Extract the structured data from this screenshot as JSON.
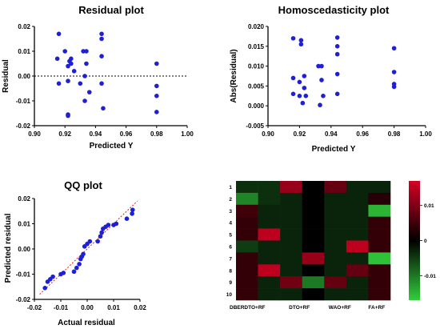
{
  "chart_data": [
    {
      "type": "scatter",
      "title": "Residual plot",
      "xlabel": "Predicted Y",
      "ylabel": "Residual",
      "xlim": [
        0.9,
        1.0
      ],
      "ylim": [
        -0.02,
        0.02
      ],
      "xticks": [
        "0.90",
        "0.92",
        "0.94",
        "0.96",
        "0.98",
        "1.00"
      ],
      "yticks": [
        "0.02",
        "0.01",
        "0.00",
        "-0.01",
        "-0.02"
      ],
      "reference_line": 0,
      "color": "#1f1fd6",
      "points": [
        {
          "x": 0.916,
          "y": 0.017
        },
        {
          "x": 0.915,
          "y": 0.007
        },
        {
          "x": 0.916,
          "y": -0.003
        },
        {
          "x": 0.92,
          "y": 0.01
        },
        {
          "x": 0.922,
          "y": 0.004
        },
        {
          "x": 0.923,
          "y": 0.006
        },
        {
          "x": 0.924,
          "y": 0.007
        },
        {
          "x": 0.924,
          "y": 0.005
        },
        {
          "x": 0.922,
          "y": -0.002
        },
        {
          "x": 0.922,
          "y": -0.0155
        },
        {
          "x": 0.922,
          "y": -0.016
        },
        {
          "x": 0.926,
          "y": 0.002
        },
        {
          "x": 0.93,
          "y": -0.003
        },
        {
          "x": 0.932,
          "y": 0.01
        },
        {
          "x": 0.934,
          "y": 0.01
        },
        {
          "x": 0.933,
          "y": 0.0
        },
        {
          "x": 0.934,
          "y": 0.005
        },
        {
          "x": 0.933,
          "y": -0.01
        },
        {
          "x": 0.936,
          "y": -0.0065
        },
        {
          "x": 0.944,
          "y": 0.017
        },
        {
          "x": 0.944,
          "y": 0.015
        },
        {
          "x": 0.944,
          "y": 0.008
        },
        {
          "x": 0.944,
          "y": -0.003
        },
        {
          "x": 0.945,
          "y": -0.013
        },
        {
          "x": 0.98,
          "y": 0.005
        },
        {
          "x": 0.98,
          "y": -0.004
        },
        {
          "x": 0.98,
          "y": -0.008
        },
        {
          "x": 0.98,
          "y": -0.0145
        }
      ]
    },
    {
      "type": "scatter",
      "title": "Homoscedasticity plot",
      "xlabel": "Predicted Y",
      "ylabel": "Abs(Residual)",
      "xlim": [
        0.9,
        1.0
      ],
      "ylim": [
        -0.005,
        0.02
      ],
      "xticks": [
        "0.90",
        "0.92",
        "0.94",
        "0.96",
        "0.98",
        "1.00"
      ],
      "yticks": [
        "0.020",
        "0.015",
        "0.010",
        "0.005",
        "0.000",
        "-0.005"
      ],
      "color": "#1f1fd6",
      "points": [
        {
          "x": 0.916,
          "y": 0.017
        },
        {
          "x": 0.916,
          "y": 0.007
        },
        {
          "x": 0.916,
          "y": 0.003
        },
        {
          "x": 0.921,
          "y": 0.0165
        },
        {
          "x": 0.921,
          "y": 0.0155
        },
        {
          "x": 0.92,
          "y": 0.006
        },
        {
          "x": 0.92,
          "y": 0.0025
        },
        {
          "x": 0.922,
          "y": 0.0007
        },
        {
          "x": 0.923,
          "y": 0.0075
        },
        {
          "x": 0.923,
          "y": 0.0045
        },
        {
          "x": 0.924,
          "y": 0.0025
        },
        {
          "x": 0.932,
          "y": 0.01
        },
        {
          "x": 0.934,
          "y": 0.01
        },
        {
          "x": 0.933,
          "y": 0.0002
        },
        {
          "x": 0.934,
          "y": 0.0065
        },
        {
          "x": 0.935,
          "y": 0.0025
        },
        {
          "x": 0.944,
          "y": 0.0172
        },
        {
          "x": 0.944,
          "y": 0.015
        },
        {
          "x": 0.944,
          "y": 0.013
        },
        {
          "x": 0.944,
          "y": 0.008
        },
        {
          "x": 0.944,
          "y": 0.003
        },
        {
          "x": 0.98,
          "y": 0.0145
        },
        {
          "x": 0.98,
          "y": 0.0085
        },
        {
          "x": 0.98,
          "y": 0.0055
        },
        {
          "x": 0.98,
          "y": 0.0048
        }
      ]
    },
    {
      "type": "scatter",
      "title": "QQ plot",
      "xlabel": "Actual residual",
      "ylabel": "Predicted residual",
      "xlim": [
        -0.02,
        0.02
      ],
      "ylim": [
        -0.02,
        0.02
      ],
      "xticks": [
        "-0.02",
        "-0.01",
        "0.00",
        "0.01",
        "0.02"
      ],
      "yticks": [
        "0.02",
        "0.01",
        "0.00",
        "-0.01",
        "-0.02"
      ],
      "reference_line": "y = x",
      "reference_color": "#e02020",
      "color": "#1f1fd6",
      "points": [
        {
          "x": -0.016,
          "y": -0.0155
        },
        {
          "x": -0.015,
          "y": -0.013
        },
        {
          "x": -0.014,
          "y": -0.012
        },
        {
          "x": -0.013,
          "y": -0.011
        },
        {
          "x": -0.01,
          "y": -0.01
        },
        {
          "x": -0.009,
          "y": -0.0095
        },
        {
          "x": -0.005,
          "y": -0.009
        },
        {
          "x": -0.004,
          "y": -0.0075
        },
        {
          "x": -0.003,
          "y": -0.006
        },
        {
          "x": -0.0025,
          "y": -0.004
        },
        {
          "x": -0.002,
          "y": -0.003
        },
        {
          "x": -0.0015,
          "y": -0.002
        },
        {
          "x": -0.001,
          "y": 0.001
        },
        {
          "x": 0.0,
          "y": 0.002
        },
        {
          "x": 0.001,
          "y": 0.003
        },
        {
          "x": 0.004,
          "y": 0.003
        },
        {
          "x": 0.005,
          "y": 0.005
        },
        {
          "x": 0.0055,
          "y": 0.0065
        },
        {
          "x": 0.006,
          "y": 0.008
        },
        {
          "x": 0.007,
          "y": 0.0088
        },
        {
          "x": 0.008,
          "y": 0.0095
        },
        {
          "x": 0.01,
          "y": 0.0095
        },
        {
          "x": 0.011,
          "y": 0.01
        },
        {
          "x": 0.015,
          "y": 0.012
        },
        {
          "x": 0.017,
          "y": 0.014
        },
        {
          "x": 0.0172,
          "y": 0.0155
        }
      ]
    },
    {
      "type": "heatmap",
      "row_labels": [
        "1",
        "2",
        "3",
        "4",
        "5",
        "6",
        "7",
        "8",
        "9",
        "10"
      ],
      "column_labels": [
        "DBERDTO+RF",
        "DTO+RF",
        "WAO+RF",
        "FA+RF"
      ],
      "n_columns": 7,
      "colorbar": {
        "min": -0.017,
        "max": 0.017,
        "ticks": [
          0.01,
          0,
          -0.01
        ],
        "tick_labels": [
          "0.01",
          "0",
          "-0.01"
        ]
      },
      "values": [
        [
          -0.004,
          -0.004,
          0.012,
          0.0,
          0.008,
          -0.003,
          -0.003
        ],
        [
          -0.011,
          -0.004,
          -0.003,
          0.0,
          -0.003,
          -0.003,
          0.003
        ],
        [
          0.005,
          -0.003,
          -0.003,
          0.0,
          -0.003,
          -0.003,
          -0.015
        ],
        [
          0.004,
          -0.003,
          -0.003,
          0.0,
          -0.003,
          -0.003,
          0.004
        ],
        [
          0.004,
          0.015,
          -0.003,
          0.0,
          -0.003,
          -0.003,
          0.004
        ],
        [
          -0.005,
          -0.003,
          -0.003,
          0.0,
          -0.003,
          0.015,
          0.004
        ],
        [
          0.004,
          -0.003,
          -0.003,
          0.012,
          -0.003,
          -0.003,
          -0.016
        ],
        [
          0.004,
          0.015,
          -0.003,
          0.0,
          -0.003,
          0.008,
          0.004
        ],
        [
          0.004,
          -0.003,
          0.009,
          -0.01,
          0.008,
          -0.003,
          0.004
        ],
        [
          0.004,
          -0.003,
          -0.003,
          0.0,
          -0.003,
          -0.003,
          0.004
        ]
      ]
    }
  ]
}
